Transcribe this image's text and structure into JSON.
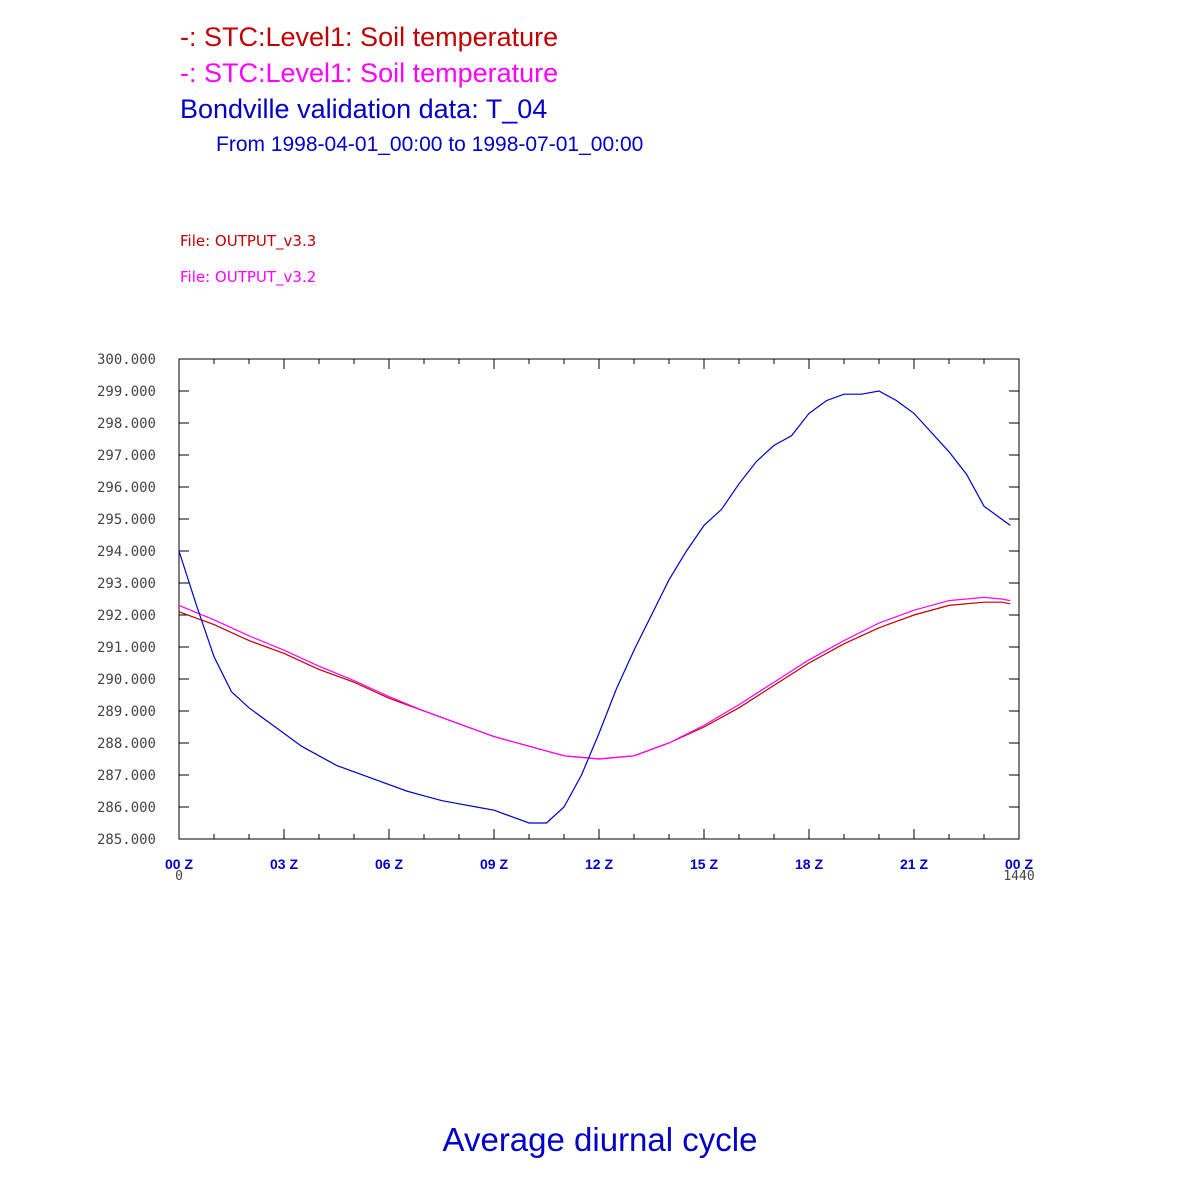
{
  "colors": {
    "series1": "#c00000",
    "series2": "#ff00ff",
    "validation": "#0000c8",
    "axis_text": "#444444",
    "frame": "#000000"
  },
  "header": {
    "line1": "-: STC:Level1: Soil temperature",
    "line2": "-: STC:Level1: Soil temperature",
    "line3": "Bondville validation data: T_04",
    "line4": "From 1998-04-01_00:00 to 1998-07-01_00:00",
    "file1": "File: OUTPUT_v3.3",
    "file2": "File: OUTPUT_v3.2"
  },
  "footer": {
    "title": "Average diurnal cycle"
  },
  "chart_data": {
    "type": "line",
    "title": "",
    "xlabel": "",
    "ylabel": "",
    "xlim": [
      0,
      1440
    ],
    "ylim": [
      285,
      300
    ],
    "grid": false,
    "y_ticks": [
      "300.000",
      "299.000",
      "298.000",
      "297.000",
      "296.000",
      "295.000",
      "294.000",
      "293.000",
      "292.000",
      "291.000",
      "290.000",
      "289.000",
      "288.000",
      "287.000",
      "286.000",
      "285.000"
    ],
    "y_tick_values": [
      300,
      299,
      298,
      297,
      296,
      295,
      294,
      293,
      292,
      291,
      290,
      289,
      288,
      287,
      286,
      285
    ],
    "x_ticks": [
      {
        "value": 0,
        "label": "00 Z"
      },
      {
        "value": 180,
        "label": "03 Z"
      },
      {
        "value": 360,
        "label": "06 Z"
      },
      {
        "value": 540,
        "label": "09 Z"
      },
      {
        "value": 720,
        "label": "12 Z"
      },
      {
        "value": 900,
        "label": "15 Z"
      },
      {
        "value": 1080,
        "label": "18 Z"
      },
      {
        "value": 1260,
        "label": "21 Z"
      },
      {
        "value": 1440,
        "label": "00 Z"
      }
    ],
    "x_range_labels": [
      {
        "value": 0,
        "label": "0"
      },
      {
        "value": 1440,
        "label": "1440"
      }
    ],
    "series": [
      {
        "name": "STC:Level1: Soil temperature",
        "file": "OUTPUT_v3.3",
        "color": "#c00000",
        "x": [
          0,
          60,
          120,
          180,
          240,
          300,
          360,
          420,
          480,
          540,
          600,
          660,
          690,
          720,
          750,
          780,
          840,
          900,
          960,
          1020,
          1080,
          1140,
          1200,
          1260,
          1320,
          1380,
          1410,
          1425
        ],
        "values": [
          292.1,
          291.7,
          291.2,
          290.8,
          290.3,
          289.9,
          289.4,
          289.0,
          288.6,
          288.2,
          287.9,
          287.6,
          287.55,
          287.5,
          287.55,
          287.6,
          288.0,
          288.5,
          289.1,
          289.8,
          290.5,
          291.1,
          291.6,
          292.0,
          292.3,
          292.4,
          292.4,
          292.35
        ]
      },
      {
        "name": "STC:Level1: Soil temperature",
        "file": "OUTPUT_v3.2",
        "color": "#ff00ff",
        "x": [
          0,
          60,
          120,
          180,
          240,
          300,
          360,
          420,
          480,
          540,
          600,
          660,
          690,
          720,
          750,
          780,
          840,
          900,
          960,
          1020,
          1080,
          1140,
          1200,
          1260,
          1320,
          1380,
          1410,
          1425
        ],
        "values": [
          292.3,
          291.85,
          291.35,
          290.9,
          290.4,
          289.95,
          289.45,
          289.0,
          288.6,
          288.2,
          287.9,
          287.6,
          287.55,
          287.5,
          287.55,
          287.6,
          288.0,
          288.55,
          289.2,
          289.9,
          290.6,
          291.2,
          291.75,
          292.15,
          292.45,
          292.55,
          292.5,
          292.45
        ]
      },
      {
        "name": "Bondville validation data: T_04",
        "color": "#0000c8",
        "x": [
          0,
          30,
          60,
          90,
          120,
          150,
          180,
          210,
          240,
          270,
          300,
          330,
          360,
          390,
          420,
          450,
          480,
          510,
          540,
          570,
          600,
          630,
          660,
          690,
          720,
          750,
          780,
          810,
          840,
          870,
          900,
          930,
          960,
          990,
          1020,
          1050,
          1080,
          1110,
          1140,
          1170,
          1200,
          1230,
          1260,
          1290,
          1320,
          1350,
          1380,
          1410,
          1425
        ],
        "values": [
          294.0,
          292.3,
          290.7,
          289.6,
          289.1,
          288.7,
          288.3,
          287.9,
          287.6,
          287.3,
          287.1,
          286.9,
          286.7,
          286.5,
          286.35,
          286.2,
          286.1,
          286.0,
          285.9,
          285.7,
          285.5,
          285.5,
          286.0,
          287.0,
          288.3,
          289.7,
          290.9,
          292.0,
          293.1,
          294.0,
          294.8,
          295.3,
          296.1,
          296.8,
          297.3,
          297.6,
          298.3,
          298.7,
          298.9,
          298.9,
          299.0,
          298.7,
          298.3,
          297.7,
          297.1,
          296.4,
          295.4,
          295.0,
          294.8
        ]
      }
    ]
  }
}
